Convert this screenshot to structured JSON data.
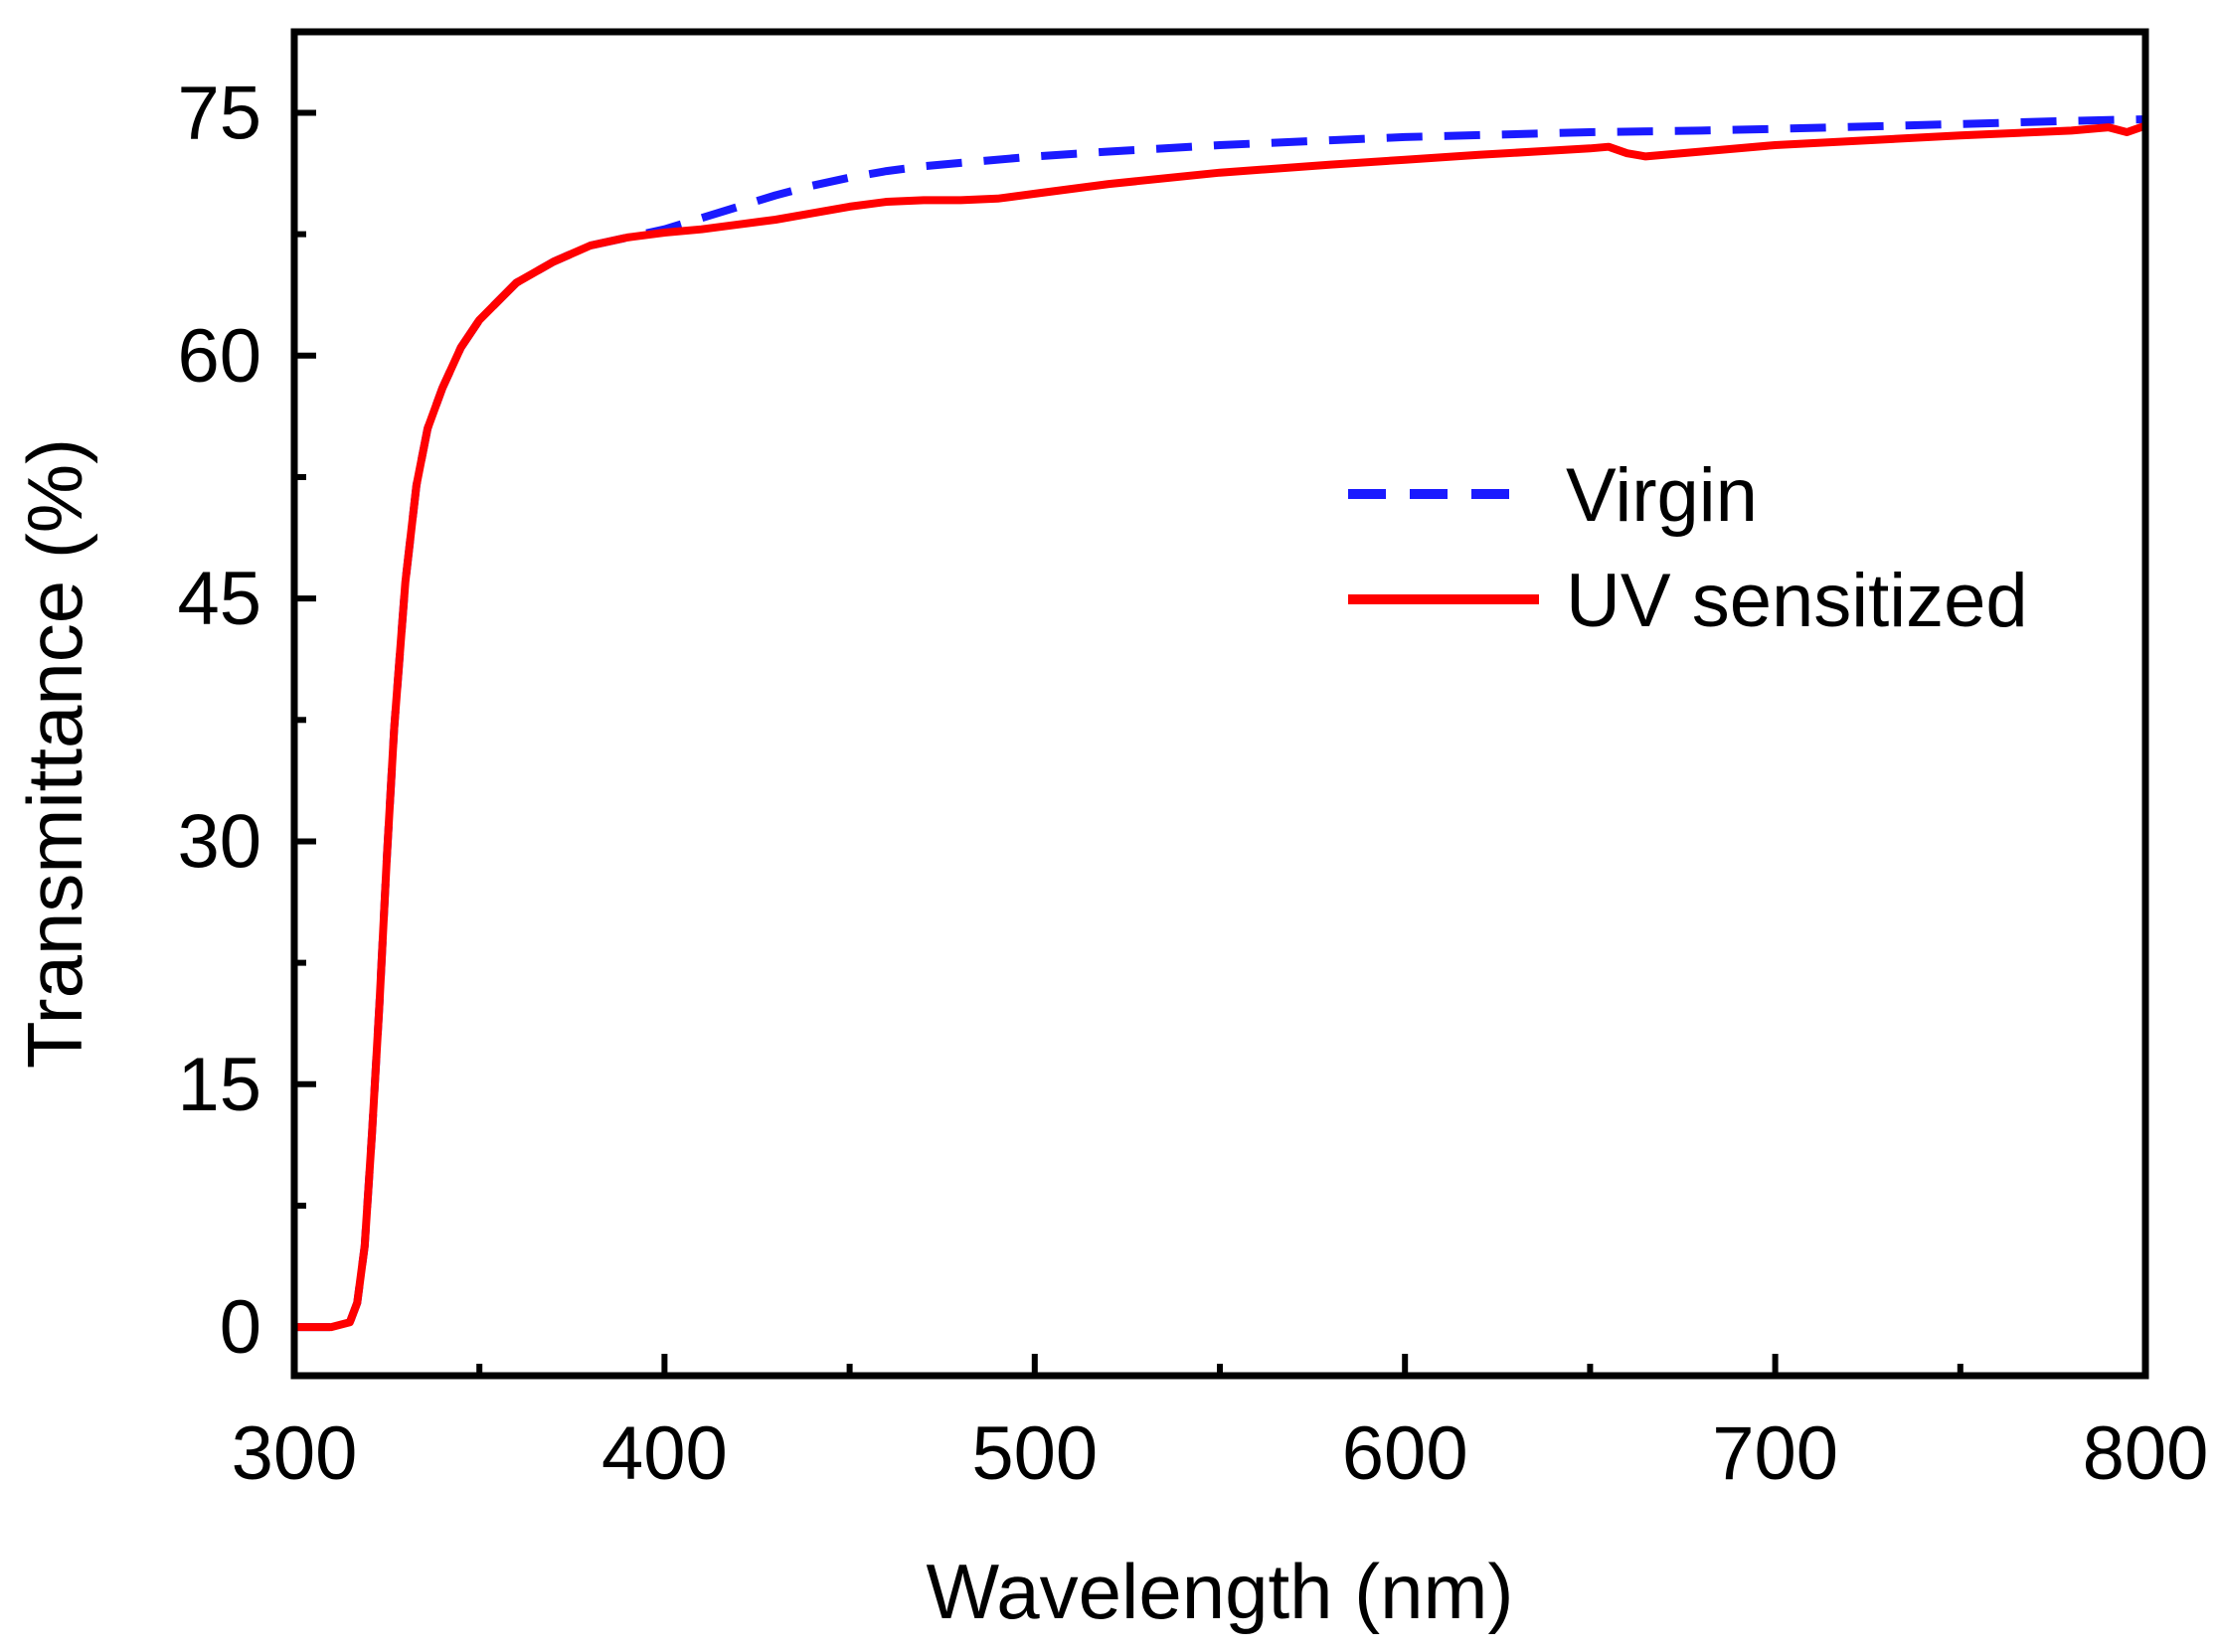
{
  "chart_data": {
    "type": "line",
    "title": "",
    "xlabel": "Wavelength (nm)",
    "ylabel": "Transmittance (%)",
    "xlim": [
      300,
      800
    ],
    "ylim": [
      -3,
      80
    ],
    "xticks": [
      300,
      400,
      500,
      600,
      700,
      800
    ],
    "xtick_labels": [
      "300",
      "400",
      "500",
      "600",
      "700",
      "800"
    ],
    "xminor": [
      350,
      450,
      550,
      650,
      750
    ],
    "yticks": [
      0,
      15,
      30,
      45,
      60,
      75
    ],
    "ytick_labels": [
      "0",
      "15",
      "30",
      "45",
      "60",
      "75"
    ],
    "yminor": [
      7.5,
      22.5,
      37.5,
      52.5,
      67.5
    ],
    "grid": false,
    "legend_position": "center-right",
    "series": [
      {
        "name": "Virgin",
        "style": "dashed",
        "color": "#1a1aff",
        "x": [
          300,
          310,
          315,
          317,
          319,
          321,
          323,
          325,
          327,
          330,
          333,
          336,
          340,
          345,
          350,
          360,
          370,
          380,
          390,
          400,
          410,
          420,
          430,
          440,
          450,
          460,
          470,
          480,
          500,
          520,
          550,
          580,
          600,
          650,
          680,
          700,
          750,
          780,
          800
        ],
        "values": [
          0,
          0,
          0.3,
          1.5,
          5,
          12,
          20,
          29,
          37,
          46,
          52,
          55.5,
          58,
          60.5,
          62.2,
          64.5,
          65.8,
          66.8,
          67.3,
          67.8,
          68.5,
          69.2,
          69.9,
          70.5,
          71.0,
          71.4,
          71.7,
          71.9,
          72.3,
          72.6,
          73.0,
          73.3,
          73.5,
          73.8,
          73.9,
          74.0,
          74.3,
          74.5,
          74.6
        ]
      },
      {
        "name": "UV sensitized",
        "style": "solid",
        "color": "#ff0000",
        "x": [
          300,
          310,
          315,
          317,
          319,
          321,
          323,
          325,
          327,
          330,
          333,
          336,
          340,
          345,
          350,
          360,
          370,
          380,
          390,
          400,
          410,
          420,
          430,
          440,
          450,
          460,
          470,
          480,
          490,
          500,
          520,
          550,
          580,
          600,
          620,
          650,
          655,
          660,
          665,
          680,
          700,
          750,
          780,
          790,
          795,
          800
        ],
        "values": [
          0,
          0,
          0.3,
          1.5,
          5,
          12,
          20,
          29,
          37,
          46,
          52,
          55.5,
          58,
          60.5,
          62.2,
          64.5,
          65.8,
          66.8,
          67.3,
          67.6,
          67.8,
          68.1,
          68.4,
          68.8,
          69.2,
          69.5,
          69.6,
          69.6,
          69.7,
          70.0,
          70.6,
          71.3,
          71.8,
          72.1,
          72.4,
          72.8,
          72.9,
          72.5,
          72.3,
          72.6,
          73.0,
          73.6,
          73.9,
          74.1,
          73.8,
          74.2
        ]
      }
    ]
  }
}
